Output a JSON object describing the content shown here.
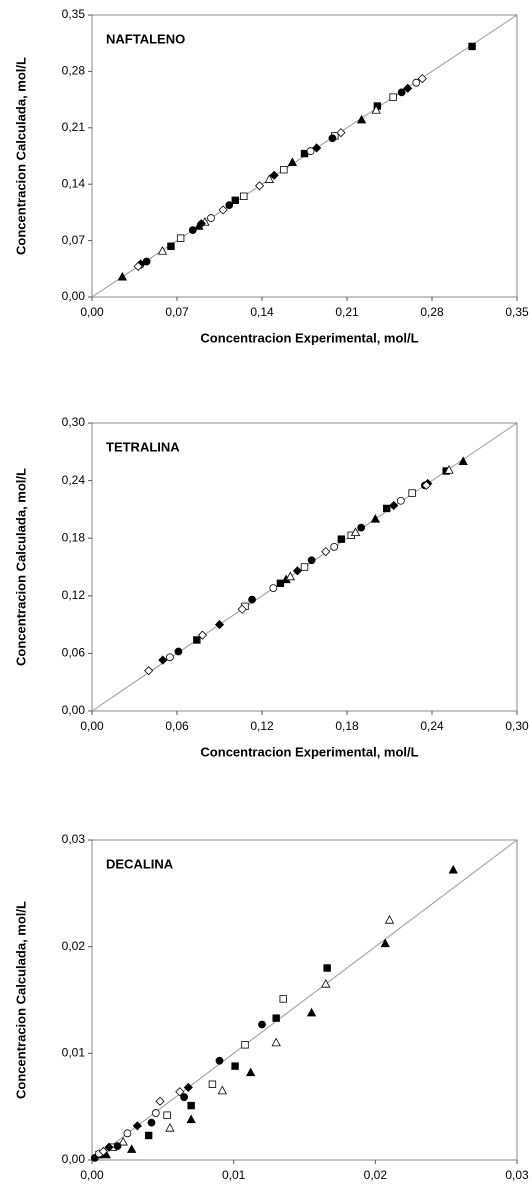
{
  "chart_data": [
    {
      "type": "scatter",
      "title": "NAFTALENO",
      "xlabel": "Concentracion Experimental, mol/L",
      "ylabel": "Concentracion Calculada, mol/L",
      "xlim": [
        0,
        0.35
      ],
      "ylim": [
        0,
        0.35
      ],
      "xticks": [
        {
          "value": 0,
          "label": "0,00"
        },
        {
          "value": 0.07,
          "label": "0,07"
        },
        {
          "value": 0.14,
          "label": "0,14"
        },
        {
          "value": 0.21,
          "label": "0,21"
        },
        {
          "value": 0.28,
          "label": "0,28"
        },
        {
          "value": 0.35,
          "label": "0,35"
        }
      ],
      "yticks": [
        {
          "value": 0,
          "label": "0,00"
        },
        {
          "value": 0.07,
          "label": "0,07"
        },
        {
          "value": 0.14,
          "label": "0,14"
        },
        {
          "value": 0.21,
          "label": "0,21"
        },
        {
          "value": 0.28,
          "label": "0,28"
        },
        {
          "value": 0.35,
          "label": "0,35"
        }
      ],
      "series": [
        {
          "marker": "square",
          "filled": true,
          "color": "#000000",
          "x": [
            0.065,
            0.118,
            0.175,
            0.235,
            0.313
          ],
          "values": [
            0.063,
            0.12,
            0.178,
            0.237,
            0.311
          ]
        },
        {
          "marker": "square",
          "filled": false,
          "color": "#000000",
          "x": [
            0.073,
            0.125,
            0.158,
            0.2,
            0.248
          ],
          "values": [
            0.073,
            0.125,
            0.158,
            0.2,
            0.248
          ]
        },
        {
          "marker": "triangle",
          "filled": true,
          "color": "#000000",
          "x": [
            0.025,
            0.088,
            0.165,
            0.222
          ],
          "values": [
            0.025,
            0.088,
            0.167,
            0.22
          ]
        },
        {
          "marker": "triangle",
          "filled": false,
          "color": "#000000",
          "x": [
            0.058,
            0.093,
            0.146,
            0.234
          ],
          "values": [
            0.057,
            0.093,
            0.146,
            0.232
          ]
        },
        {
          "marker": "circle",
          "filled": true,
          "color": "#000000",
          "x": [
            0.045,
            0.083,
            0.113,
            0.198,
            0.255
          ],
          "values": [
            0.044,
            0.083,
            0.114,
            0.197,
            0.254
          ]
        },
        {
          "marker": "circle",
          "filled": false,
          "color": "#000000",
          "x": [
            0.04,
            0.098,
            0.18,
            0.267
          ],
          "values": [
            0.04,
            0.098,
            0.181,
            0.266
          ]
        },
        {
          "marker": "diamond",
          "filled": true,
          "color": "#000000",
          "x": [
            0.04,
            0.09,
            0.15,
            0.185,
            0.26
          ],
          "values": [
            0.041,
            0.091,
            0.151,
            0.185,
            0.259
          ]
        },
        {
          "marker": "diamond",
          "filled": false,
          "color": "#000000",
          "x": [
            0.038,
            0.108,
            0.138,
            0.205,
            0.272
          ],
          "values": [
            0.038,
            0.108,
            0.138,
            0.204,
            0.271
          ]
        }
      ]
    },
    {
      "type": "scatter",
      "title": "TETRALINA",
      "xlabel": "Concentracion Experimental, mol/L",
      "ylabel": "Concentracion Calculada, mol/L",
      "xlim": [
        0,
        0.3
      ],
      "ylim": [
        0,
        0.3
      ],
      "xticks": [
        {
          "value": 0,
          "label": "0,00"
        },
        {
          "value": 0.06,
          "label": "0,06"
        },
        {
          "value": 0.12,
          "label": "0,12"
        },
        {
          "value": 0.18,
          "label": "0,18"
        },
        {
          "value": 0.24,
          "label": "0,24"
        },
        {
          "value": 0.3,
          "label": "0,30"
        }
      ],
      "yticks": [
        {
          "value": 0,
          "label": "0,00"
        },
        {
          "value": 0.06,
          "label": "0,06"
        },
        {
          "value": 0.12,
          "label": "0,12"
        },
        {
          "value": 0.18,
          "label": "0,18"
        },
        {
          "value": 0.24,
          "label": "0,24"
        },
        {
          "value": 0.3,
          "label": "0,30"
        }
      ],
      "series": [
        {
          "marker": "square",
          "filled": true,
          "color": "#000000",
          "x": [
            0.074,
            0.133,
            0.176,
            0.208,
            0.25
          ],
          "values": [
            0.074,
            0.133,
            0.179,
            0.211,
            0.25
          ]
        },
        {
          "marker": "square",
          "filled": false,
          "color": "#000000",
          "x": [
            0.108,
            0.15,
            0.183,
            0.226
          ],
          "values": [
            0.109,
            0.15,
            0.183,
            0.227
          ]
        },
        {
          "marker": "triangle",
          "filled": true,
          "color": "#000000",
          "x": [
            0.137,
            0.2,
            0.262
          ],
          "values": [
            0.137,
            0.2,
            0.26
          ]
        },
        {
          "marker": "triangle",
          "filled": false,
          "color": "#000000",
          "x": [
            0.14,
            0.186,
            0.252
          ],
          "values": [
            0.14,
            0.186,
            0.251
          ]
        },
        {
          "marker": "circle",
          "filled": true,
          "color": "#000000",
          "x": [
            0.061,
            0.113,
            0.155,
            0.19,
            0.235
          ],
          "values": [
            0.062,
            0.116,
            0.157,
            0.191,
            0.235
          ]
        },
        {
          "marker": "circle",
          "filled": false,
          "color": "#000000",
          "x": [
            0.055,
            0.128,
            0.171,
            0.218
          ],
          "values": [
            0.056,
            0.128,
            0.171,
            0.219
          ]
        },
        {
          "marker": "diamond",
          "filled": true,
          "color": "#000000",
          "x": [
            0.05,
            0.09,
            0.145,
            0.213,
            0.237
          ],
          "values": [
            0.053,
            0.09,
            0.146,
            0.214,
            0.237
          ]
        },
        {
          "marker": "diamond",
          "filled": false,
          "color": "#000000",
          "x": [
            0.04,
            0.078,
            0.106,
            0.165,
            0.236
          ],
          "values": [
            0.042,
            0.079,
            0.106,
            0.166,
            0.235
          ]
        }
      ]
    },
    {
      "type": "scatter",
      "title": "DECALINA",
      "xlabel": "Concentracion Experimental, mol/L",
      "ylabel": "Concentracion Calculada, mol/L",
      "xlim": [
        0,
        0.03
      ],
      "ylim": [
        0,
        0.03
      ],
      "xticks": [
        {
          "value": 0,
          "label": "0,00"
        },
        {
          "value": 0.01,
          "label": "0,01"
        },
        {
          "value": 0.02,
          "label": "0,02"
        },
        {
          "value": 0.03,
          "label": "0,03"
        }
      ],
      "yticks": [
        {
          "value": 0,
          "label": "0,00"
        },
        {
          "value": 0.01,
          "label": "0,01"
        },
        {
          "value": 0.02,
          "label": "0,02"
        },
        {
          "value": 0.03,
          "label": "0,03"
        }
      ],
      "series": [
        {
          "marker": "square",
          "filled": true,
          "color": "#000000",
          "x": [
            0.0005,
            0.004,
            0.007,
            0.0101,
            0.013,
            0.0166
          ],
          "values": [
            0.0005,
            0.0023,
            0.0051,
            0.0088,
            0.0133,
            0.018
          ]
        },
        {
          "marker": "square",
          "filled": false,
          "color": "#000000",
          "x": [
            0.0015,
            0.0053,
            0.0085,
            0.0108,
            0.0135
          ],
          "values": [
            0.0012,
            0.0042,
            0.0071,
            0.0108,
            0.0151
          ]
        },
        {
          "marker": "triangle",
          "filled": true,
          "color": "#000000",
          "x": [
            0.001,
            0.0028,
            0.007,
            0.0112,
            0.0155,
            0.0207,
            0.0255
          ],
          "values": [
            0.0005,
            0.001,
            0.0038,
            0.0082,
            0.0138,
            0.0203,
            0.0272
          ]
        },
        {
          "marker": "triangle",
          "filled": false,
          "color": "#000000",
          "x": [
            0.0022,
            0.0055,
            0.0092,
            0.013,
            0.0165,
            0.021
          ],
          "values": [
            0.0017,
            0.003,
            0.0065,
            0.011,
            0.0165,
            0.0225
          ]
        },
        {
          "marker": "circle",
          "filled": true,
          "color": "#000000",
          "x": [
            0.0002,
            0.0018,
            0.0042,
            0.0065,
            0.009,
            0.012
          ],
          "values": [
            0.0002,
            0.0013,
            0.0035,
            0.0059,
            0.0093,
            0.0127
          ]
        },
        {
          "marker": "circle",
          "filled": false,
          "color": "#000000",
          "x": [
            0.0005,
            0.0025,
            0.0045
          ],
          "values": [
            0.0006,
            0.0025,
            0.0044
          ]
        },
        {
          "marker": "diamond",
          "filled": true,
          "color": "#000000",
          "x": [
            0.0012,
            0.0032,
            0.0068
          ],
          "values": [
            0.0012,
            0.0032,
            0.0068
          ]
        },
        {
          "marker": "diamond",
          "filled": false,
          "color": "#000000",
          "x": [
            0.0008,
            0.0048,
            0.0062
          ],
          "values": [
            0.0008,
            0.0055,
            0.0064
          ]
        }
      ]
    }
  ]
}
